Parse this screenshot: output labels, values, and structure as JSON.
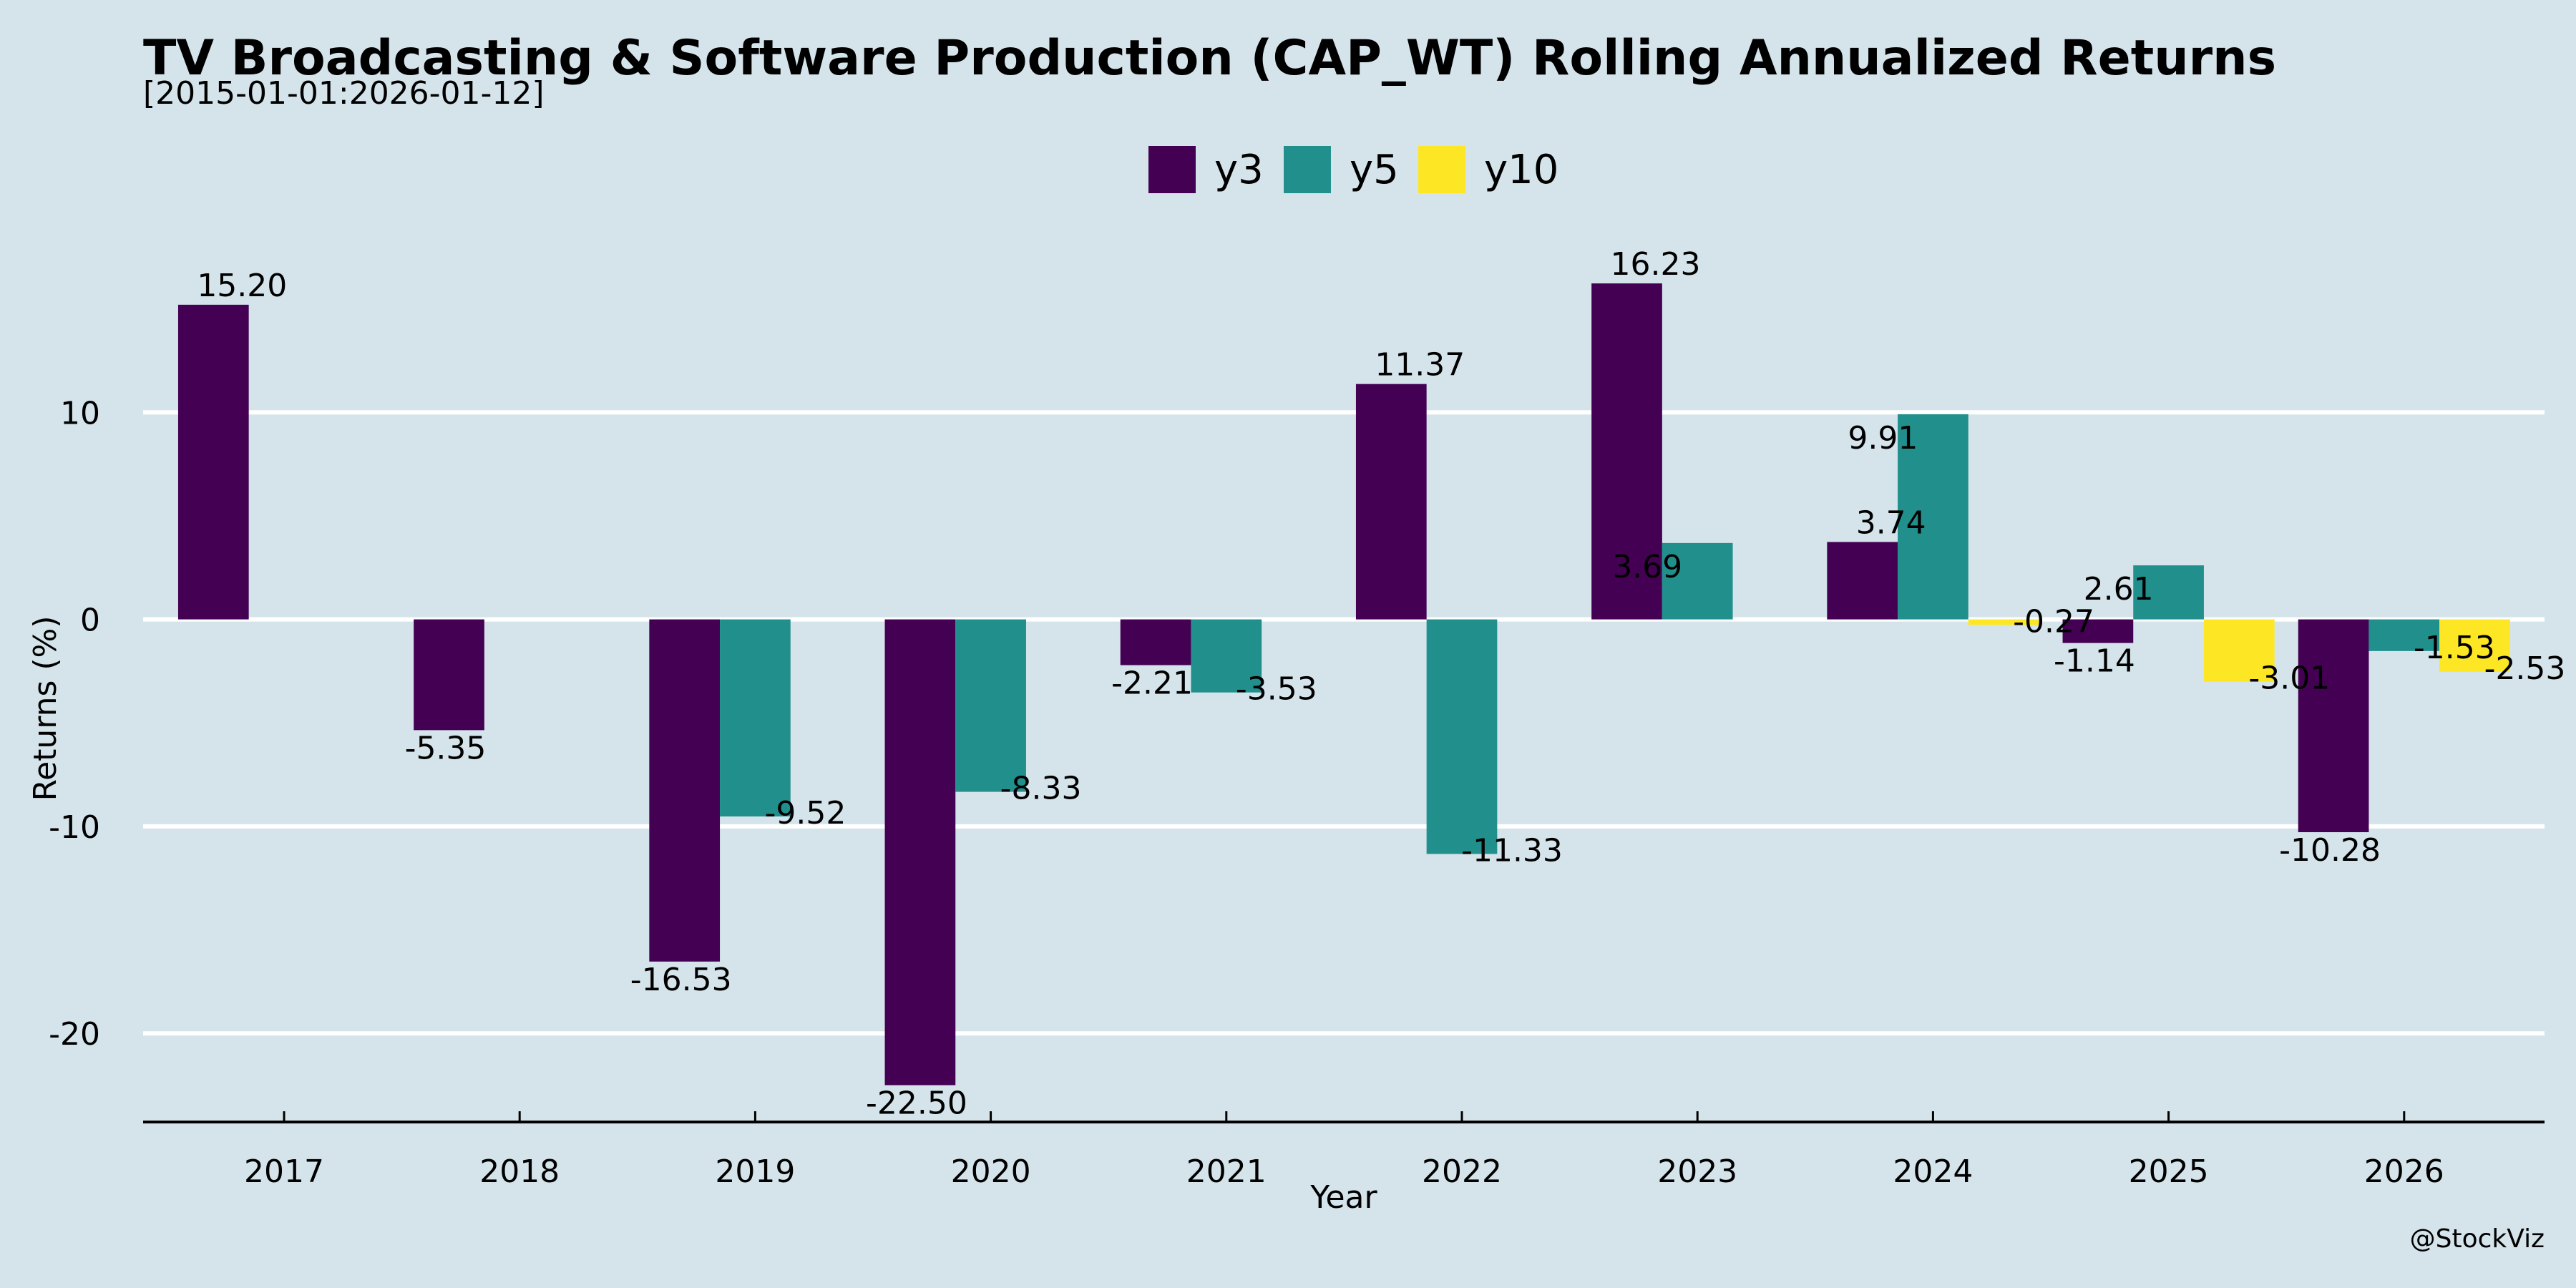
{
  "chart_data": {
    "type": "bar",
    "title": "TV Broadcasting & Software Production (CAP_WT) Rolling Annualized Returns",
    "subtitle": "[2015-01-01:2026-01-12]",
    "xlabel": "Year",
    "ylabel": "Returns (%)",
    "watermark": "@StockViz",
    "categories": [
      "2017",
      "2018",
      "2019",
      "2020",
      "2021",
      "2022",
      "2023",
      "2024",
      "2025",
      "2026"
    ],
    "series": [
      {
        "name": "y3",
        "color": "#440154",
        "values": [
          15.2,
          -5.35,
          -16.53,
          -22.5,
          -2.21,
          11.37,
          16.23,
          3.74,
          -1.14,
          -10.28
        ]
      },
      {
        "name": "y5",
        "color": "#21908d",
        "values": [
          null,
          null,
          -9.52,
          -8.33,
          -3.53,
          -11.33,
          3.69,
          9.91,
          2.61,
          -1.53
        ]
      },
      {
        "name": "y10",
        "color": "#fde725",
        "values": [
          null,
          null,
          null,
          null,
          null,
          null,
          null,
          -0.27,
          -3.01,
          -2.53
        ]
      }
    ],
    "yticks": [
      -20,
      -10,
      0,
      10
    ],
    "ylim": [
      -24.4,
      18.5
    ],
    "grid": "horizontal",
    "legend_position": "top-center"
  }
}
